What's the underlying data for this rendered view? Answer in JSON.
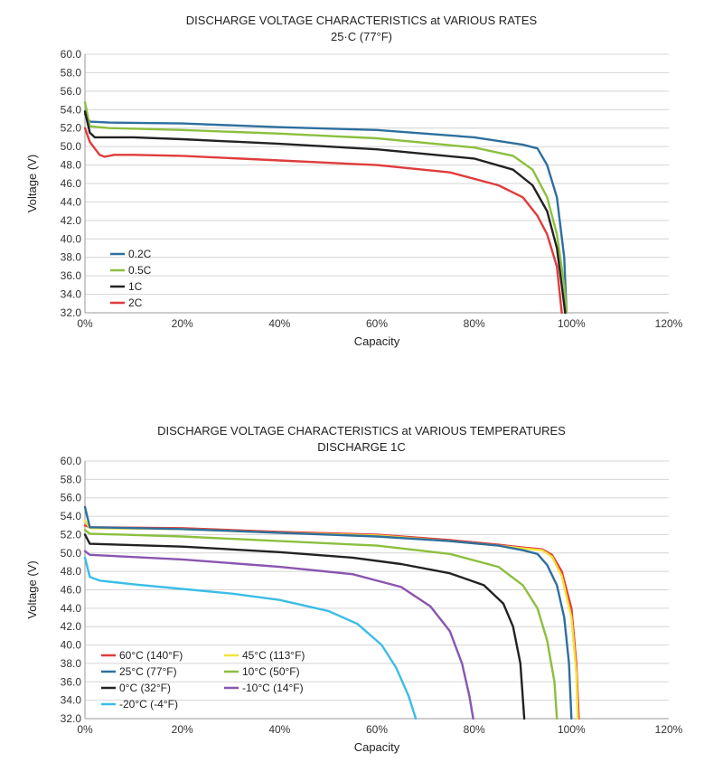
{
  "chart_data": [
    {
      "type": "line",
      "title": "DISCHARGE VOLTAGE CHARACTERISTICS at VARIOUS RATES",
      "subtitle": "25·C (77°F)",
      "xlabel": "Capacity",
      "ylabel": "Voltage (V)",
      "xlim": [
        0,
        120
      ],
      "ylim": [
        32,
        60
      ],
      "x_ticks": [
        "0%",
        "20%",
        "40%",
        "60%",
        "80%",
        "100%",
        "120%"
      ],
      "y_ticks": [
        "32.0",
        "34.0",
        "36.0",
        "38.0",
        "40.0",
        "42.0",
        "44.0",
        "46.0",
        "48.0",
        "50.0",
        "52.0",
        "54.0",
        "56.0",
        "58.0",
        "60.0"
      ],
      "grid": true,
      "legend_position": "bottom-left",
      "series": [
        {
          "name": "0.2C",
          "color": "#2e6f9e",
          "points": [
            [
              0,
              53.5
            ],
            [
              1,
              52.7
            ],
            [
              5,
              52.6
            ],
            [
              20,
              52.5
            ],
            [
              40,
              52.1
            ],
            [
              60,
              51.8
            ],
            [
              80,
              51.0
            ],
            [
              90,
              50.2
            ],
            [
              93,
              49.8
            ],
            [
              95,
              48.0
            ],
            [
              97,
              44.5
            ],
            [
              98.5,
              38.0
            ],
            [
              99,
              32.0
            ]
          ]
        },
        {
          "name": "0.5C",
          "color": "#8cbf3f",
          "points": [
            [
              0,
              54.8
            ],
            [
              1,
              52.2
            ],
            [
              5,
              52.0
            ],
            [
              20,
              51.8
            ],
            [
              40,
              51.4
            ],
            [
              60,
              50.9
            ],
            [
              80,
              49.9
            ],
            [
              88,
              49.0
            ],
            [
              92,
              47.5
            ],
            [
              95,
              44.5
            ],
            [
              97,
              40.5
            ],
            [
              98.5,
              35.0
            ],
            [
              99,
              32.0
            ]
          ]
        },
        {
          "name": "1C",
          "color": "#222222",
          "points": [
            [
              0,
              53.8
            ],
            [
              1,
              51.5
            ],
            [
              2,
              51.0
            ],
            [
              10,
              51.0
            ],
            [
              20,
              50.8
            ],
            [
              40,
              50.3
            ],
            [
              60,
              49.7
            ],
            [
              80,
              48.7
            ],
            [
              88,
              47.5
            ],
            [
              92,
              45.8
            ],
            [
              95,
              43.0
            ],
            [
              97,
              39.0
            ],
            [
              98,
              35.0
            ],
            [
              98.7,
              32.0
            ]
          ]
        },
        {
          "name": "2C",
          "color": "#e03c3c",
          "points": [
            [
              0,
              52.0
            ],
            [
              1,
              50.5
            ],
            [
              2,
              49.8
            ],
            [
              3,
              49.1
            ],
            [
              4,
              48.9
            ],
            [
              6,
              49.1
            ],
            [
              10,
              49.1
            ],
            [
              20,
              49.0
            ],
            [
              40,
              48.5
            ],
            [
              60,
              48.0
            ],
            [
              75,
              47.2
            ],
            [
              85,
              45.8
            ],
            [
              90,
              44.5
            ],
            [
              93,
              42.5
            ],
            [
              95,
              40.5
            ],
            [
              97,
              37.0
            ],
            [
              98,
              32.0
            ]
          ]
        }
      ]
    },
    {
      "type": "line",
      "title": "DISCHARGE VOLTAGE CHARACTERISTICS at VARIOUS TEMPERATURES",
      "subtitle": "DISCHARGE 1C",
      "xlabel": "Capacity",
      "ylabel": "Voltage (V)",
      "xlim": [
        0,
        120
      ],
      "ylim": [
        32,
        60
      ],
      "x_ticks": [
        "0%",
        "20%",
        "40%",
        "60%",
        "80%",
        "100%",
        "120%"
      ],
      "y_ticks": [
        "32.0",
        "34.0",
        "36.0",
        "38.0",
        "40.0",
        "42.0",
        "44.0",
        "46.0",
        "48.0",
        "50.0",
        "52.0",
        "54.0",
        "56.0",
        "58.0",
        "60.0"
      ],
      "grid": true,
      "legend_position": "bottom-left",
      "series": [
        {
          "name": "60°C  (140°F)",
          "color": "#e03c3c",
          "points": [
            [
              0,
              53.0
            ],
            [
              1,
              52.8
            ],
            [
              20,
              52.7
            ],
            [
              40,
              52.3
            ],
            [
              60,
              52.0
            ],
            [
              75,
              51.4
            ],
            [
              85,
              50.9
            ],
            [
              90,
              50.6
            ],
            [
              94,
              50.4
            ],
            [
              96,
              49.8
            ],
            [
              98,
              48.0
            ],
            [
              100,
              44.0
            ],
            [
              101,
              38.0
            ],
            [
              101.5,
              32.0
            ]
          ]
        },
        {
          "name": "45°C  (113°F)",
          "color": "#f2e33a",
          "points": [
            [
              0,
              53.5
            ],
            [
              1,
              52.7
            ],
            [
              20,
              52.6
            ],
            [
              40,
              52.2
            ],
            [
              60,
              51.9
            ],
            [
              75,
              51.3
            ],
            [
              85,
              50.8
            ],
            [
              90,
              50.5
            ],
            [
              94,
              50.3
            ],
            [
              96,
              49.6
            ],
            [
              98,
              47.5
            ],
            [
              100,
              43.0
            ],
            [
              101,
              37.0
            ],
            [
              101.3,
              32.0
            ]
          ]
        },
        {
          "name": "25°C  (77°F)",
          "color": "#2e6f9e",
          "points": [
            [
              0,
              55.0
            ],
            [
              1,
              52.8
            ],
            [
              20,
              52.6
            ],
            [
              40,
              52.2
            ],
            [
              60,
              51.8
            ],
            [
              75,
              51.3
            ],
            [
              85,
              50.8
            ],
            [
              90,
              50.3
            ],
            [
              93,
              49.9
            ],
            [
              95,
              48.7
            ],
            [
              97,
              46.5
            ],
            [
              98.5,
              43.0
            ],
            [
              99.5,
              38.0
            ],
            [
              100,
              32.0
            ]
          ]
        },
        {
          "name": "10°C  (50°F)",
          "color": "#8cbf3f",
          "points": [
            [
              0,
              52.5
            ],
            [
              1,
              52.1
            ],
            [
              20,
              51.8
            ],
            [
              40,
              51.3
            ],
            [
              60,
              50.8
            ],
            [
              75,
              49.9
            ],
            [
              85,
              48.5
            ],
            [
              90,
              46.5
            ],
            [
              93,
              44.0
            ],
            [
              95,
              40.5
            ],
            [
              96.5,
              36.0
            ],
            [
              97,
              32.0
            ]
          ]
        },
        {
          "name": "0°C  (32°F)",
          "color": "#222222",
          "points": [
            [
              0,
              52.0
            ],
            [
              1,
              51.0
            ],
            [
              20,
              50.7
            ],
            [
              40,
              50.1
            ],
            [
              55,
              49.5
            ],
            [
              65,
              48.8
            ],
            [
              75,
              47.8
            ],
            [
              82,
              46.5
            ],
            [
              86,
              44.5
            ],
            [
              88,
              42.0
            ],
            [
              89.5,
              38.0
            ],
            [
              90.3,
              32.0
            ]
          ]
        },
        {
          "name": "-10°C  (14°F)",
          "color": "#8a55b0",
          "points": [
            [
              0,
              50.2
            ],
            [
              1,
              49.8
            ],
            [
              20,
              49.3
            ],
            [
              40,
              48.5
            ],
            [
              55,
              47.7
            ],
            [
              65,
              46.3
            ],
            [
              71,
              44.2
            ],
            [
              75,
              41.5
            ],
            [
              77.5,
              38.0
            ],
            [
              79,
              34.5
            ],
            [
              79.8,
              32.0
            ]
          ]
        },
        {
          "name": "-20°C  (-4°F)",
          "color": "#3bbde6",
          "points": [
            [
              0,
              49.5
            ],
            [
              1,
              47.4
            ],
            [
              3,
              47.0
            ],
            [
              10,
              46.6
            ],
            [
              20,
              46.1
            ],
            [
              30,
              45.6
            ],
            [
              40,
              44.9
            ],
            [
              50,
              43.7
            ],
            [
              56,
              42.3
            ],
            [
              61,
              40.0
            ],
            [
              64,
              37.5
            ],
            [
              66.5,
              34.5
            ],
            [
              68,
              32.0
            ]
          ]
        }
      ]
    }
  ]
}
